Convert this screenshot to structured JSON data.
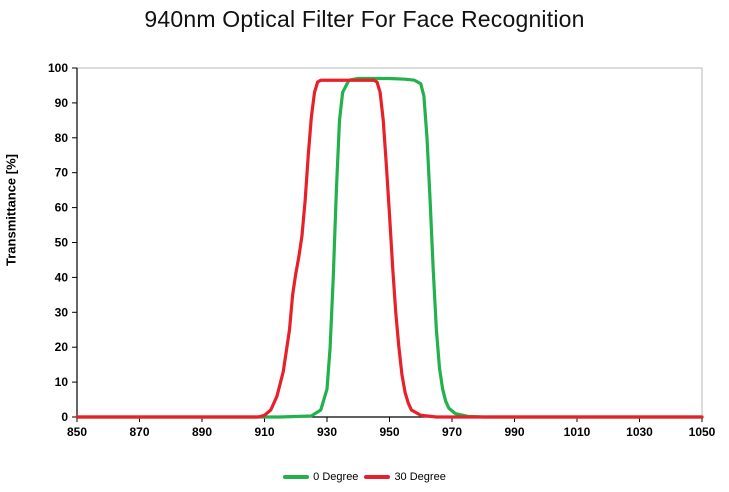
{
  "chart_data": {
    "type": "line",
    "title": "940nm Optical Filter For Face Recognition",
    "xlabel": "",
    "ylabel": "Transmittance [%]",
    "xlim": [
      850,
      1050
    ],
    "ylim": [
      0,
      100
    ],
    "x_ticks": [
      850,
      870,
      890,
      910,
      930,
      950,
      970,
      990,
      1010,
      1030,
      1050
    ],
    "y_ticks": [
      0,
      10,
      20,
      30,
      40,
      50,
      60,
      70,
      80,
      90,
      100
    ],
    "grid": false,
    "legend_position": "bottom-center",
    "series": [
      {
        "name": "0 Degree",
        "color": "#22b14c",
        "points": [
          [
            850,
            0
          ],
          [
            915,
            0
          ],
          [
            925,
            0.3
          ],
          [
            928,
            2
          ],
          [
            930,
            8
          ],
          [
            931,
            20
          ],
          [
            932,
            40
          ],
          [
            933,
            65
          ],
          [
            934,
            85
          ],
          [
            935,
            93
          ],
          [
            937,
            96.5
          ],
          [
            940,
            97
          ],
          [
            945,
            97
          ],
          [
            950,
            97
          ],
          [
            955,
            96.8
          ],
          [
            958,
            96.5
          ],
          [
            960,
            95.5
          ],
          [
            961,
            92
          ],
          [
            962,
            80
          ],
          [
            963,
            62
          ],
          [
            964,
            42
          ],
          [
            965,
            25
          ],
          [
            966,
            14
          ],
          [
            967,
            8
          ],
          [
            968,
            4.5
          ],
          [
            969,
            2.5
          ],
          [
            971,
            1
          ],
          [
            975,
            0.2
          ],
          [
            980,
            0
          ],
          [
            1050,
            0
          ]
        ]
      },
      {
        "name": "30 Degree",
        "color": "#e8202a",
        "points": [
          [
            850,
            0
          ],
          [
            908,
            0
          ],
          [
            910,
            0.5
          ],
          [
            912,
            2
          ],
          [
            914,
            6
          ],
          [
            916,
            13
          ],
          [
            918,
            25
          ],
          [
            919,
            35
          ],
          [
            920,
            41
          ],
          [
            921,
            46
          ],
          [
            922,
            52
          ],
          [
            923,
            62
          ],
          [
            924,
            75
          ],
          [
            925,
            86
          ],
          [
            926,
            93
          ],
          [
            927,
            96
          ],
          [
            928,
            96.5
          ],
          [
            935,
            96.5
          ],
          [
            940,
            96.5
          ],
          [
            945,
            96.5
          ],
          [
            946,
            96
          ],
          [
            947,
            93
          ],
          [
            948,
            85
          ],
          [
            949,
            72
          ],
          [
            950,
            58
          ],
          [
            951,
            43
          ],
          [
            952,
            30
          ],
          [
            953,
            20
          ],
          [
            954,
            12
          ],
          [
            955,
            7
          ],
          [
            956,
            4
          ],
          [
            957,
            2
          ],
          [
            960,
            0.5
          ],
          [
            965,
            0
          ],
          [
            1050,
            0
          ]
        ]
      }
    ]
  }
}
